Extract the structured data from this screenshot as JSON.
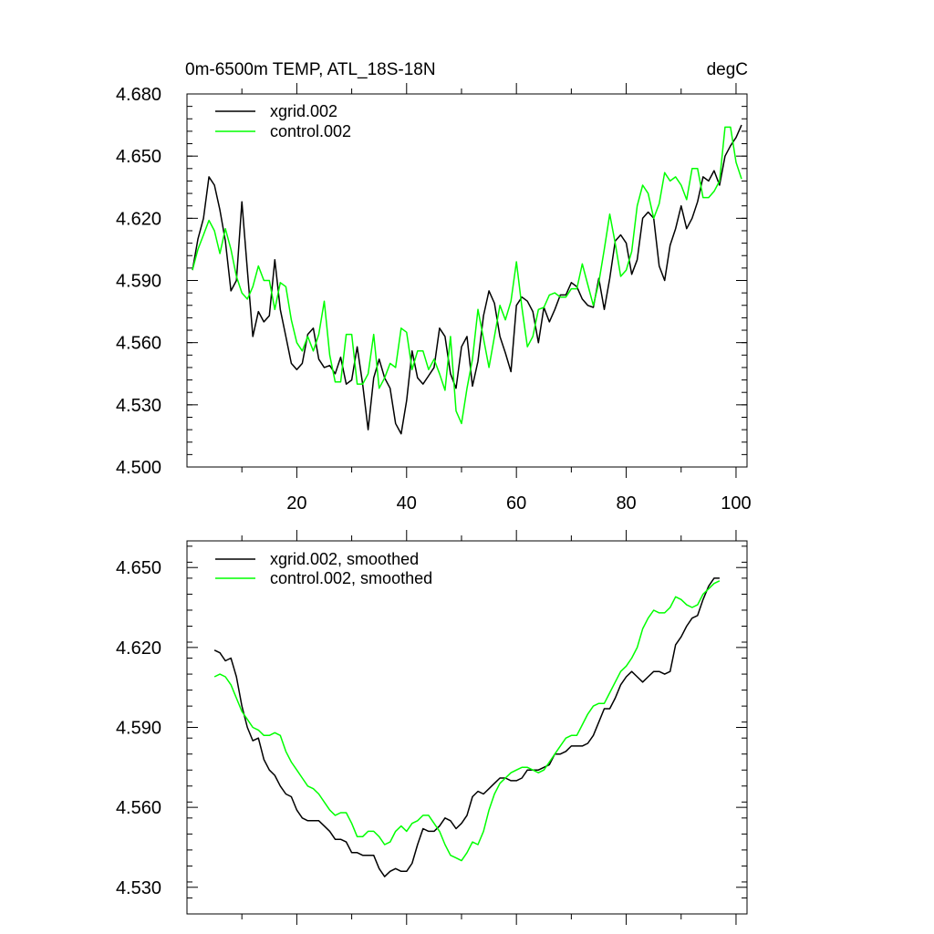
{
  "chart_data": [
    {
      "type": "line",
      "title": "0m-6500m TEMP, ATL_18S-18N",
      "units": "degC",
      "xlim": [
        0,
        102
      ],
      "ylim": [
        4.5,
        4.68
      ],
      "xticks": [
        20,
        40,
        60,
        80,
        100
      ],
      "xtick_labels": [
        "20",
        "40",
        "60",
        "80",
        "100"
      ],
      "yticks": [
        4.5,
        4.53,
        4.56,
        4.59,
        4.62,
        4.65,
        4.68
      ],
      "ytick_labels": [
        "4.500",
        "4.530",
        "4.560",
        "4.590",
        "4.620",
        "4.650",
        "4.680"
      ],
      "legend": [
        "xgrid.002",
        "control.002"
      ],
      "series": [
        {
          "name": "xgrid.002",
          "color": "#000000",
          "x": [
            1,
            2,
            3,
            4,
            5,
            6,
            7,
            8,
            9,
            10,
            11,
            12,
            13,
            14,
            15,
            16,
            17,
            18,
            19,
            20,
            21,
            22,
            23,
            24,
            25,
            26,
            27,
            28,
            29,
            30,
            31,
            32,
            33,
            34,
            35,
            36,
            37,
            38,
            39,
            40,
            41,
            42,
            43,
            44,
            45,
            46,
            47,
            48,
            49,
            50,
            51,
            52,
            53,
            54,
            55,
            56,
            57,
            58,
            59,
            60,
            61,
            62,
            63,
            64,
            65,
            66,
            67,
            68,
            69,
            70,
            71,
            72,
            73,
            74,
            75,
            76,
            77,
            78,
            79,
            80,
            81,
            82,
            83,
            84,
            85,
            86,
            87,
            88,
            89,
            90,
            91,
            92,
            93,
            94,
            95,
            96,
            97,
            98,
            99,
            100,
            101
          ],
          "values": [
            4.595,
            4.61,
            4.62,
            4.64,
            4.636,
            4.624,
            4.609,
            4.585,
            4.59,
            4.628,
            4.595,
            4.563,
            4.575,
            4.57,
            4.573,
            4.6,
            4.576,
            4.563,
            4.55,
            4.547,
            4.55,
            4.564,
            4.567,
            4.552,
            4.548,
            4.549,
            4.545,
            4.553,
            4.54,
            4.542,
            4.558,
            4.54,
            4.518,
            4.543,
            4.552,
            4.543,
            4.538,
            4.521,
            4.516,
            4.532,
            4.556,
            4.543,
            4.54,
            4.544,
            4.548,
            4.567,
            4.563,
            4.545,
            4.538,
            4.558,
            4.563,
            4.539,
            4.551,
            4.573,
            4.585,
            4.579,
            4.563,
            4.555,
            4.546,
            4.578,
            4.582,
            4.58,
            4.575,
            4.56,
            4.577,
            4.57,
            4.576,
            4.583,
            4.583,
            4.589,
            4.587,
            4.581,
            4.578,
            4.577,
            4.591,
            4.576,
            4.591,
            4.609,
            4.612,
            4.608,
            4.593,
            4.6,
            4.62,
            4.623,
            4.62,
            4.597,
            4.59,
            4.607,
            4.615,
            4.626,
            4.615,
            4.62,
            4.628,
            4.64,
            4.638,
            4.643,
            4.636,
            4.65,
            4.655,
            4.659,
            4.665
          ]
        },
        {
          "name": "control.002",
          "color": "#00ff00",
          "x": [
            1,
            2,
            3,
            4,
            5,
            6,
            7,
            8,
            9,
            10,
            11,
            12,
            13,
            14,
            15,
            16,
            17,
            18,
            19,
            20,
            21,
            22,
            23,
            24,
            25,
            26,
            27,
            28,
            29,
            30,
            31,
            32,
            33,
            34,
            35,
            36,
            37,
            38,
            39,
            40,
            41,
            42,
            43,
            44,
            45,
            46,
            47,
            48,
            49,
            50,
            51,
            52,
            53,
            54,
            55,
            56,
            57,
            58,
            59,
            60,
            61,
            62,
            63,
            64,
            65,
            66,
            67,
            68,
            69,
            70,
            71,
            72,
            73,
            74,
            75,
            76,
            77,
            78,
            79,
            80,
            81,
            82,
            83,
            84,
            85,
            86,
            87,
            88,
            89,
            90,
            91,
            92,
            93,
            94,
            95,
            96,
            97,
            98,
            99,
            100,
            101
          ],
          "values": [
            4.595,
            4.605,
            4.612,
            4.619,
            4.614,
            4.603,
            4.615,
            4.605,
            4.592,
            4.584,
            4.581,
            4.587,
            4.597,
            4.59,
            4.59,
            4.576,
            4.589,
            4.587,
            4.571,
            4.56,
            4.556,
            4.563,
            4.556,
            4.564,
            4.58,
            4.554,
            4.541,
            4.541,
            4.564,
            4.564,
            4.54,
            4.54,
            4.545,
            4.564,
            4.538,
            4.543,
            4.55,
            4.548,
            4.567,
            4.565,
            4.547,
            4.556,
            4.556,
            4.547,
            4.552,
            4.545,
            4.537,
            4.563,
            4.527,
            4.521,
            4.538,
            4.552,
            4.576,
            4.562,
            4.548,
            4.563,
            4.578,
            4.571,
            4.58,
            4.599,
            4.577,
            4.558,
            4.563,
            4.576,
            4.577,
            4.583,
            4.584,
            4.582,
            4.582,
            4.586,
            4.586,
            4.598,
            4.588,
            4.578,
            4.589,
            4.605,
            4.622,
            4.608,
            4.592,
            4.595,
            4.604,
            4.626,
            4.636,
            4.632,
            4.62,
            4.627,
            4.642,
            4.638,
            4.64,
            4.636,
            4.629,
            4.644,
            4.644,
            4.63,
            4.63,
            4.633,
            4.638,
            4.664,
            4.664,
            4.647,
            4.639
          ]
        }
      ]
    },
    {
      "type": "line",
      "xlim": [
        0,
        102
      ],
      "ylim": [
        4.52,
        4.66
      ],
      "xticks": [
        20,
        40,
        60,
        80,
        100
      ],
      "yticks": [
        4.53,
        4.56,
        4.59,
        4.62,
        4.65
      ],
      "ytick_labels": [
        "4.530",
        "4.560",
        "4.590",
        "4.620",
        "4.650"
      ],
      "legend": [
        "xgrid.002, smoothed",
        "control.002, smoothed"
      ],
      "series": [
        {
          "name": "xgrid.002, smoothed",
          "color": "#000000",
          "x": [
            5,
            6,
            7,
            8,
            9,
            10,
            11,
            12,
            13,
            14,
            15,
            16,
            17,
            18,
            19,
            20,
            21,
            22,
            23,
            24,
            25,
            26,
            27,
            28,
            29,
            30,
            31,
            32,
            33,
            34,
            35,
            36,
            37,
            38,
            39,
            40,
            41,
            42,
            43,
            44,
            45,
            46,
            47,
            48,
            49,
            50,
            51,
            52,
            53,
            54,
            55,
            56,
            57,
            58,
            59,
            60,
            61,
            62,
            63,
            64,
            65,
            66,
            67,
            68,
            69,
            70,
            71,
            72,
            73,
            74,
            75,
            76,
            77,
            78,
            79,
            80,
            81,
            82,
            83,
            84,
            85,
            86,
            87,
            88,
            89,
            90,
            91,
            92,
            93,
            94,
            95,
            96,
            97
          ],
          "values": [
            4.619,
            4.618,
            4.615,
            4.616,
            4.609,
            4.598,
            4.59,
            4.585,
            4.586,
            4.578,
            4.574,
            4.572,
            4.568,
            4.565,
            4.564,
            4.559,
            4.556,
            4.555,
            4.555,
            4.555,
            4.553,
            4.551,
            4.548,
            4.548,
            4.547,
            4.543,
            4.543,
            4.542,
            4.542,
            4.542,
            4.537,
            4.534,
            4.536,
            4.537,
            4.536,
            4.536,
            4.539,
            4.546,
            4.552,
            4.551,
            4.551,
            4.553,
            4.556,
            4.555,
            4.552,
            4.554,
            4.557,
            4.564,
            4.566,
            4.565,
            4.567,
            4.569,
            4.571,
            4.571,
            4.57,
            4.57,
            4.571,
            4.574,
            4.574,
            4.574,
            4.575,
            4.576,
            4.58,
            4.58,
            4.581,
            4.583,
            4.583,
            4.583,
            4.584,
            4.587,
            4.592,
            4.597,
            4.597,
            4.601,
            4.606,
            4.609,
            4.611,
            4.609,
            4.607,
            4.609,
            4.611,
            4.611,
            4.61,
            4.611,
            4.621,
            4.624,
            4.628,
            4.631,
            4.632,
            4.638,
            4.643,
            4.646,
            4.646
          ]
        },
        {
          "name": "control.002, smoothed",
          "color": "#00ff00",
          "x": [
            5,
            6,
            7,
            8,
            9,
            10,
            11,
            12,
            13,
            14,
            15,
            16,
            17,
            18,
            19,
            20,
            21,
            22,
            23,
            24,
            25,
            26,
            27,
            28,
            29,
            30,
            31,
            32,
            33,
            34,
            35,
            36,
            37,
            38,
            39,
            40,
            41,
            42,
            43,
            44,
            45,
            46,
            47,
            48,
            49,
            50,
            51,
            52,
            53,
            54,
            55,
            56,
            57,
            58,
            59,
            60,
            61,
            62,
            63,
            64,
            65,
            66,
            67,
            68,
            69,
            70,
            71,
            72,
            73,
            74,
            75,
            76,
            77,
            78,
            79,
            80,
            81,
            82,
            83,
            84,
            85,
            86,
            87,
            88,
            89,
            90,
            91,
            92,
            93,
            94,
            95,
            96,
            97
          ],
          "values": [
            4.609,
            4.61,
            4.609,
            4.606,
            4.601,
            4.596,
            4.593,
            4.59,
            4.589,
            4.587,
            4.587,
            4.588,
            4.587,
            4.581,
            4.577,
            4.574,
            4.571,
            4.568,
            4.567,
            4.565,
            4.562,
            4.559,
            4.557,
            4.558,
            4.558,
            4.554,
            4.549,
            4.549,
            4.551,
            4.551,
            4.549,
            4.546,
            4.547,
            4.551,
            4.553,
            4.551,
            4.554,
            4.555,
            4.557,
            4.557,
            4.554,
            4.551,
            4.546,
            4.542,
            4.541,
            4.54,
            4.543,
            4.547,
            4.546,
            4.551,
            4.559,
            4.565,
            4.569,
            4.571,
            4.573,
            4.574,
            4.575,
            4.575,
            4.574,
            4.573,
            4.574,
            4.577,
            4.58,
            4.583,
            4.586,
            4.587,
            4.587,
            4.591,
            4.595,
            4.598,
            4.599,
            4.599,
            4.603,
            4.607,
            4.611,
            4.613,
            4.616,
            4.62,
            4.627,
            4.631,
            4.634,
            4.633,
            4.633,
            4.635,
            4.639,
            4.638,
            4.636,
            4.635,
            4.636,
            4.64,
            4.642,
            4.644,
            4.645
          ]
        }
      ]
    }
  ]
}
